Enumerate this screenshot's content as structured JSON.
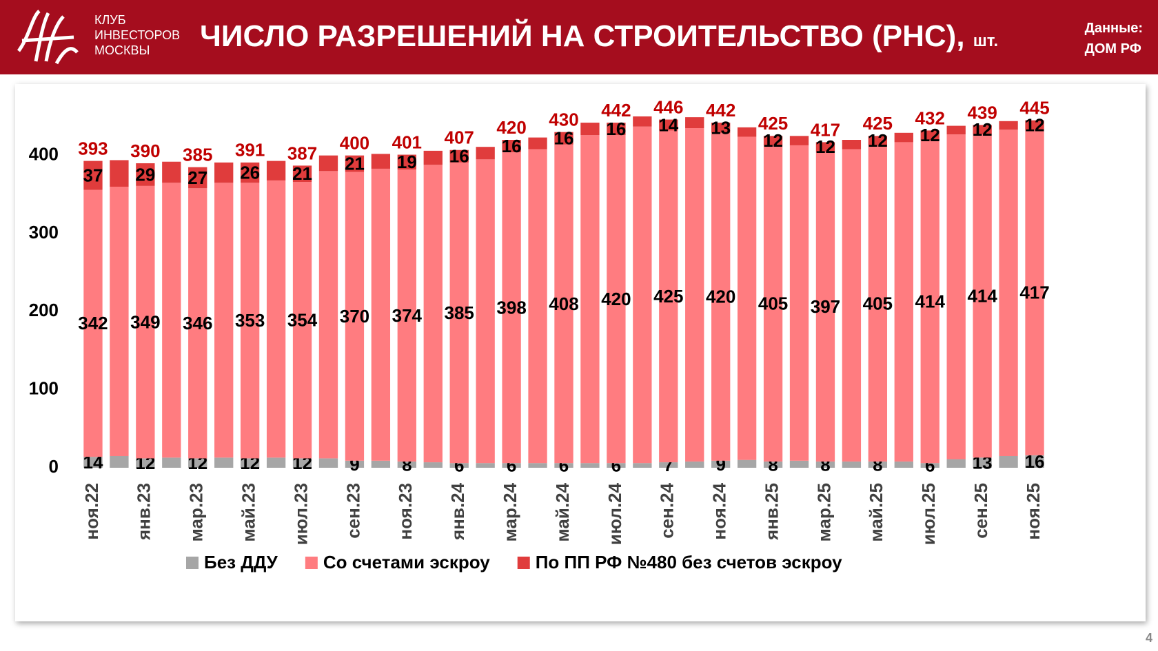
{
  "header": {
    "logo": [
      "КЛУБ",
      "ИНВЕСТОРОВ",
      "МОСКВЫ"
    ],
    "title": "ЧИСЛО РАЗРЕШЕНИЙ НА СТРОИТЕЛЬСТВО (РНС),",
    "unit": "шт.",
    "source": [
      "Данные:",
      "ДОМ РФ"
    ],
    "page": "4"
  },
  "chart_data": {
    "type": "stacked_bar",
    "categories": [
      "ноя.22",
      null,
      "янв.23",
      null,
      "мар.23",
      null,
      "май.23",
      null,
      "июл.23",
      null,
      "сен.23",
      null,
      "ноя.23",
      null,
      "янв.24",
      null,
      "мар.24",
      null,
      "май.24",
      null,
      "июл.24",
      null,
      "сен.24",
      null,
      "ноя.24",
      null,
      "янв.25",
      null,
      "мар.25",
      null,
      "май.25",
      null,
      "июл.25",
      null,
      "сен.25",
      null,
      "ноя.25"
    ],
    "series": [
      {
        "name": "Без ДДУ",
        "color": "#a6a6a6",
        "values": [
          14,
          15,
          12,
          13,
          12,
          13,
          12,
          13,
          12,
          12,
          9,
          9,
          8,
          7,
          6,
          6,
          6,
          6,
          6,
          6,
          6,
          6,
          7,
          8,
          9,
          10,
          8,
          9,
          8,
          8,
          8,
          8,
          6,
          11,
          13,
          15,
          16
        ]
      },
      {
        "name": "Со счетами эскроу",
        "color": "#ff7c80",
        "values": [
          342,
          345,
          349,
          352,
          346,
          352,
          353,
          355,
          354,
          368,
          370,
          374,
          374,
          381,
          385,
          389,
          398,
          402,
          408,
          420,
          420,
          431,
          425,
          427,
          420,
          414,
          405,
          404,
          397,
          400,
          405,
          409,
          414,
          416,
          414,
          418,
          417
        ]
      },
      {
        "name": "По ПП РФ №480 без счетов эскроу",
        "color": "#e03c3c",
        "values": [
          37,
          34,
          29,
          27,
          27,
          26,
          26,
          25,
          21,
          20,
          21,
          19,
          19,
          18,
          16,
          16,
          16,
          15,
          16,
          16,
          16,
          13,
          14,
          14,
          13,
          12,
          12,
          12,
          12,
          12,
          12,
          12,
          12,
          11,
          12,
          11,
          12
        ]
      }
    ],
    "totals": [
      393,
      null,
      390,
      null,
      385,
      null,
      391,
      null,
      387,
      null,
      400,
      null,
      401,
      null,
      407,
      null,
      420,
      null,
      430,
      null,
      442,
      null,
      446,
      null,
      442,
      null,
      425,
      null,
      417,
      null,
      425,
      null,
      432,
      null,
      439,
      null,
      445
    ],
    "totals_color": "#c00000",
    "label_step": 2,
    "ylim": [
      0,
      450
    ],
    "yticks": [
      0,
      100,
      200,
      300,
      400
    ],
    "grid": false,
    "legend": "bottom"
  }
}
